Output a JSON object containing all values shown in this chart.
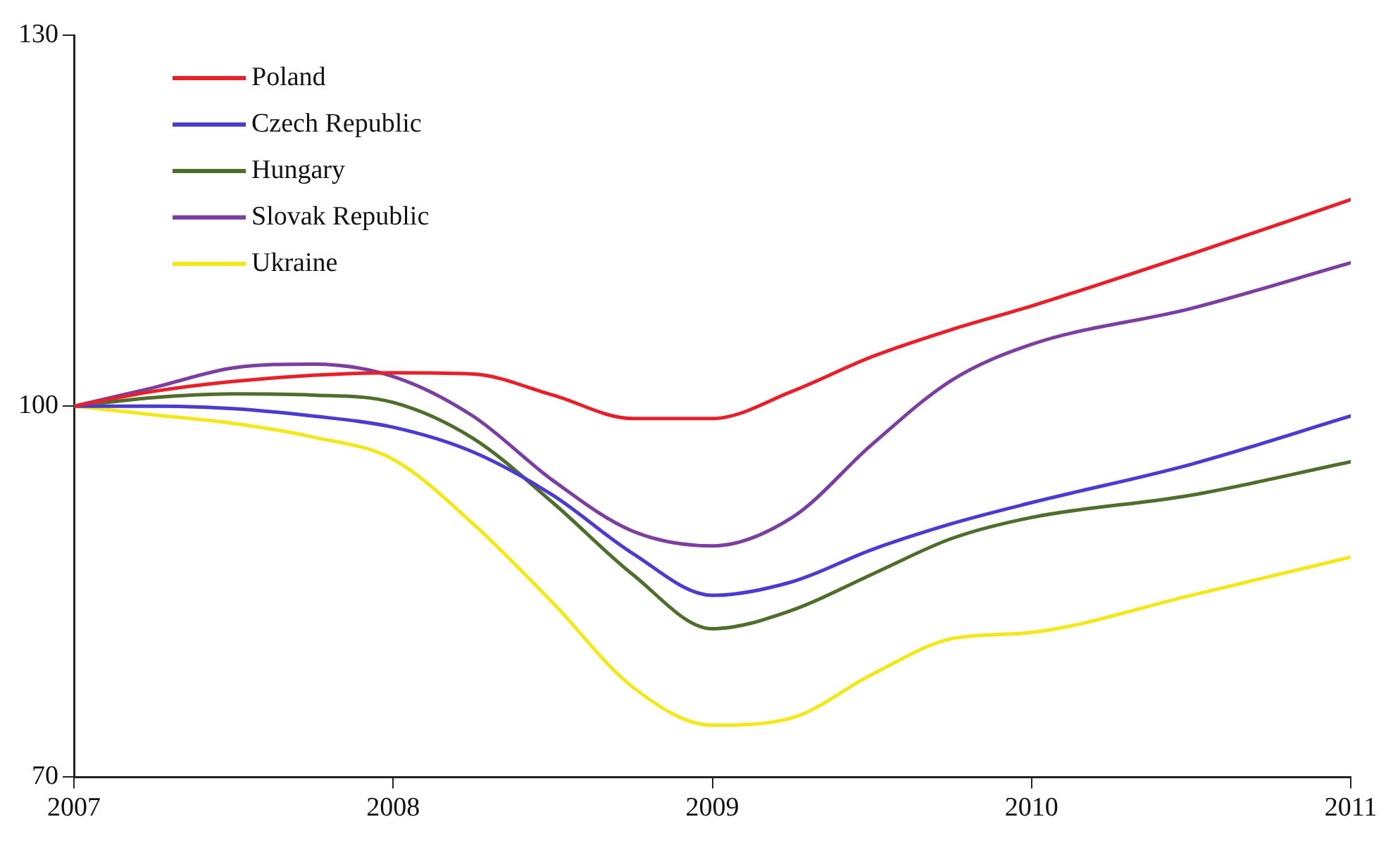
{
  "chart_data": {
    "type": "line",
    "x": [
      2007,
      2007.25,
      2007.5,
      2007.75,
      2008,
      2008.25,
      2008.5,
      2008.75,
      2009,
      2009.25,
      2009.5,
      2009.75,
      2010,
      2010.5,
      2011
    ],
    "series": [
      {
        "name": "Poland",
        "color": "#e8202a",
        "values": [
          100,
          101.2,
          102,
          102.5,
          102.7,
          102.6,
          100.9,
          99,
          99,
          101.2,
          104,
          106.2,
          108.1,
          112.3,
          116.7
        ]
      },
      {
        "name": "Czech Republic",
        "color": "#4b3bd0",
        "values": [
          100,
          100,
          99.8,
          99.2,
          98.3,
          96.3,
          92.8,
          88.1,
          84.7,
          85.8,
          88.4,
          90.5,
          92.2,
          95.3,
          99.2
        ]
      },
      {
        "name": "Hungary",
        "color": "#4f6e2c",
        "values": [
          100,
          100.7,
          101,
          100.9,
          100.3,
          97.4,
          92.2,
          86.4,
          82,
          83.5,
          86.4,
          89.3,
          91,
          92.8,
          95.5
        ]
      },
      {
        "name": "Slovak Republic",
        "color": "#7a3fa0",
        "values": [
          100,
          101.5,
          103.1,
          103.4,
          102.4,
          99.2,
          94,
          89.9,
          88.7,
          91,
          96.9,
          102.1,
          105,
          107.9,
          111.6
        ]
      },
      {
        "name": "Ukraine",
        "color": "#f2e81a",
        "values": [
          100,
          99.3,
          98.6,
          97.5,
          95.7,
          90.5,
          84.1,
          77.3,
          74.2,
          74.8,
          78.3,
          81.2,
          81.7,
          84.7,
          87.8
        ]
      }
    ],
    "xlim": [
      2007,
      2011
    ],
    "xticks": [
      2007,
      2008,
      2009,
      2010,
      2011
    ],
    "ylim": [
      70,
      130
    ],
    "yticks": [
      70,
      100,
      130
    ],
    "grid": false,
    "legend": "top left",
    "marker": "none",
    "line_style": "solid"
  }
}
